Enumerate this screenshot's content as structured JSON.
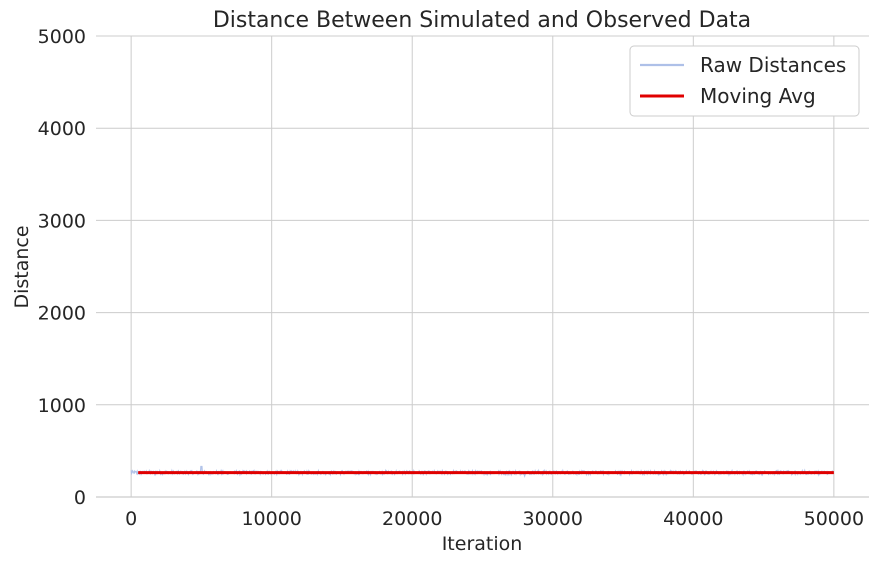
{
  "chart_data": {
    "type": "line",
    "title": "Distance Between Simulated and Observed Data",
    "xlabel": "Iteration",
    "ylabel": "Distance",
    "xlim": [
      -2500,
      52500
    ],
    "ylim": [
      0,
      5000
    ],
    "x_ticks": [
      0,
      10000,
      20000,
      30000,
      40000,
      50000
    ],
    "y_ticks": [
      0,
      1000,
      2000,
      3000,
      4000,
      5000
    ],
    "grid": true,
    "legend_position": "top-right",
    "series": [
      {
        "name": "Raw Distances",
        "color": "#aec0e8",
        "x_range": [
          0,
          50000
        ],
        "baseline": 265,
        "noise_range": [
          225,
          335
        ],
        "values_sample": [
          [
            0,
            290
          ],
          [
            500,
            265
          ],
          [
            5000,
            330
          ],
          [
            10000,
            262
          ],
          [
            15000,
            268
          ],
          [
            20000,
            260
          ],
          [
            25000,
            265
          ],
          [
            28000,
            230
          ],
          [
            30000,
            262
          ],
          [
            35000,
            268
          ],
          [
            40000,
            262
          ],
          [
            45000,
            262
          ],
          [
            50000,
            265
          ]
        ]
      },
      {
        "name": "Moving Avg",
        "color": "#e00000",
        "x": [
          500,
          50000
        ],
        "values": [
          265,
          265
        ]
      }
    ]
  }
}
